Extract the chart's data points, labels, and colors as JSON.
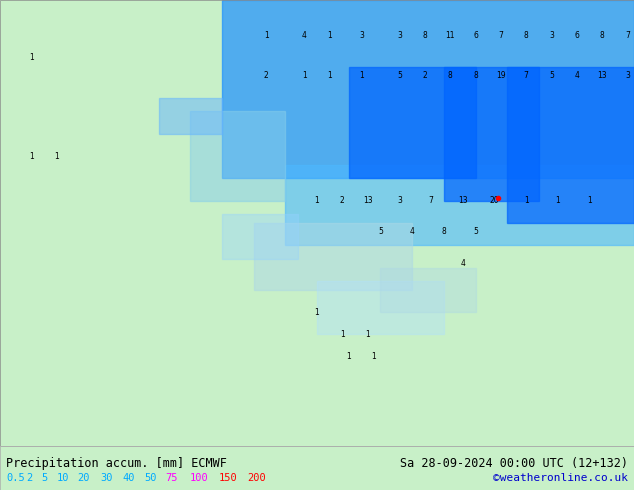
{
  "title_left": "Precipitation accum. [mm] ECMWF",
  "title_right": "Sa 28-09-2024 00:00 UTC (12+132)",
  "credit": "©weatheronline.co.uk",
  "legend_values": [
    "0.5",
    "2",
    "5",
    "10",
    "20",
    "30",
    "40",
    "50",
    "75",
    "100",
    "150",
    "200"
  ],
  "legend_colors": [
    "#c8f0ff",
    "#96d2ff",
    "#64b4ff",
    "#3296ff",
    "#0078ff",
    "#00c8c8",
    "#00a000",
    "#78c800",
    "#f0f000",
    "#ff6400",
    "#ff0000",
    "#c800c8"
  ],
  "bg_color": "#c8f0c8",
  "border_color": "#000000",
  "bottom_bar_color": "#ffffff",
  "text_color_left": "#000000",
  "text_color_right": "#000000",
  "credit_color": "#0000cc",
  "legend_text_color": "#00a0ff",
  "fig_width": 6.34,
  "fig_height": 4.9,
  "dpi": 100
}
